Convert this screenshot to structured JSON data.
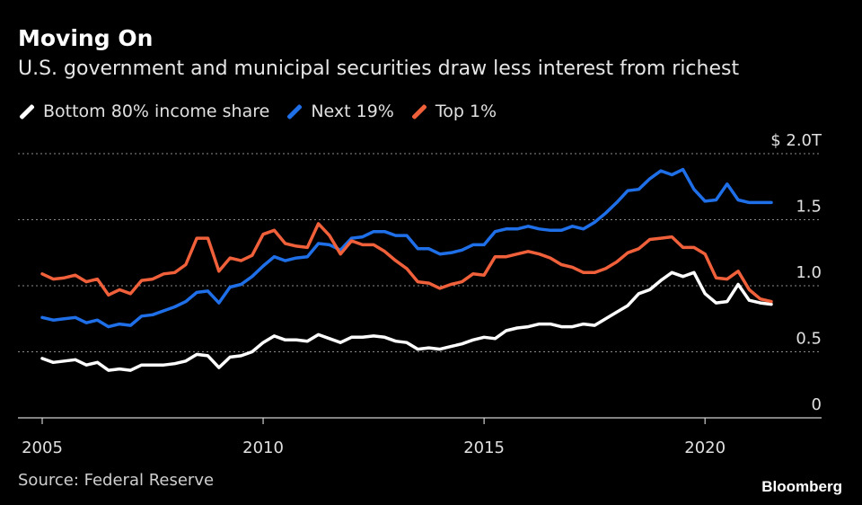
{
  "header": {
    "title": "Moving On",
    "subtitle": "U.S. government and municipal securities draw less interest from richest"
  },
  "footer": {
    "source": "Source: Federal Reserve",
    "brand": "Bloomberg"
  },
  "chart_data": {
    "type": "line",
    "title": "Moving On",
    "subtitle": "U.S. government and municipal securities draw less interest from richest",
    "xlabel": "",
    "ylabel": "",
    "xlim": [
      2005,
      2021.5
    ],
    "ylim": [
      0,
      2.0
    ],
    "y_unit_label": "$ 2.0T",
    "x_ticks": [
      "2005",
      "2010",
      "2015",
      "2020"
    ],
    "y_ticks": [
      "0",
      "0.5",
      "1.0",
      "1.5",
      "$ 2.0T"
    ],
    "grid": "horizontal dotted",
    "legend_position": "top-left",
    "x": [
      2005,
      2005.25,
      2005.5,
      2005.75,
      2006,
      2006.25,
      2006.5,
      2006.75,
      2007,
      2007.25,
      2007.5,
      2007.75,
      2008,
      2008.25,
      2008.5,
      2008.75,
      2009,
      2009.25,
      2009.5,
      2009.75,
      2010,
      2010.25,
      2010.5,
      2010.75,
      2011,
      2011.25,
      2011.5,
      2011.75,
      2012,
      2012.25,
      2012.5,
      2012.75,
      2013,
      2013.25,
      2013.5,
      2013.75,
      2014,
      2014.25,
      2014.5,
      2014.75,
      2015,
      2015.25,
      2015.5,
      2015.75,
      2016,
      2016.25,
      2016.5,
      2016.75,
      2017,
      2017.25,
      2017.5,
      2017.75,
      2018,
      2018.25,
      2018.5,
      2018.75,
      2019,
      2019.25,
      2019.5,
      2019.75,
      2020,
      2020.25,
      2020.5,
      2020.75,
      2021,
      2021.25,
      2021.5
    ],
    "series": [
      {
        "name": "Bottom 80% income share",
        "color": "#ffffff",
        "values": [
          0.45,
          0.42,
          0.43,
          0.44,
          0.4,
          0.42,
          0.36,
          0.37,
          0.36,
          0.4,
          0.4,
          0.4,
          0.41,
          0.43,
          0.48,
          0.47,
          0.38,
          0.46,
          0.47,
          0.5,
          0.57,
          0.62,
          0.59,
          0.59,
          0.58,
          0.63,
          0.6,
          0.57,
          0.61,
          0.61,
          0.62,
          0.61,
          0.58,
          0.57,
          0.52,
          0.53,
          0.52,
          0.54,
          0.56,
          0.59,
          0.61,
          0.6,
          0.66,
          0.68,
          0.69,
          0.71,
          0.71,
          0.69,
          0.69,
          0.71,
          0.7,
          0.75,
          0.8,
          0.85,
          0.94,
          0.97,
          1.04,
          1.1,
          1.07,
          1.1,
          0.94,
          0.87,
          0.88,
          1.01,
          0.89,
          0.87,
          0.86
        ]
      },
      {
        "name": "Next 19%",
        "color": "#1f6fe8",
        "values": [
          0.76,
          0.74,
          0.75,
          0.76,
          0.72,
          0.74,
          0.69,
          0.71,
          0.7,
          0.77,
          0.78,
          0.81,
          0.84,
          0.88,
          0.95,
          0.96,
          0.87,
          0.99,
          1.01,
          1.07,
          1.15,
          1.22,
          1.19,
          1.21,
          1.22,
          1.32,
          1.31,
          1.27,
          1.36,
          1.37,
          1.41,
          1.41,
          1.38,
          1.38,
          1.28,
          1.28,
          1.24,
          1.25,
          1.27,
          1.31,
          1.31,
          1.41,
          1.43,
          1.43,
          1.45,
          1.43,
          1.42,
          1.42,
          1.45,
          1.43,
          1.48,
          1.55,
          1.63,
          1.72,
          1.73,
          1.81,
          1.87,
          1.84,
          1.88,
          1.73,
          1.64,
          1.65,
          1.77,
          1.65,
          1.63,
          1.63,
          1.63
        ]
      },
      {
        "name": "Top 1%",
        "color": "#f0603a",
        "values": [
          1.09,
          1.05,
          1.06,
          1.08,
          1.03,
          1.05,
          0.93,
          0.97,
          0.94,
          1.04,
          1.05,
          1.09,
          1.1,
          1.16,
          1.36,
          1.36,
          1.11,
          1.21,
          1.19,
          1.23,
          1.39,
          1.42,
          1.32,
          1.3,
          1.29,
          1.47,
          1.38,
          1.24,
          1.34,
          1.31,
          1.31,
          1.26,
          1.19,
          1.13,
          1.03,
          1.02,
          0.98,
          1.01,
          1.03,
          1.09,
          1.08,
          1.22,
          1.22,
          1.24,
          1.26,
          1.24,
          1.21,
          1.16,
          1.14,
          1.1,
          1.1,
          1.13,
          1.18,
          1.25,
          1.28,
          1.35,
          1.36,
          1.37,
          1.29,
          1.29,
          1.24,
          1.06,
          1.05,
          1.11,
          0.97,
          0.9,
          0.88
        ]
      }
    ]
  }
}
